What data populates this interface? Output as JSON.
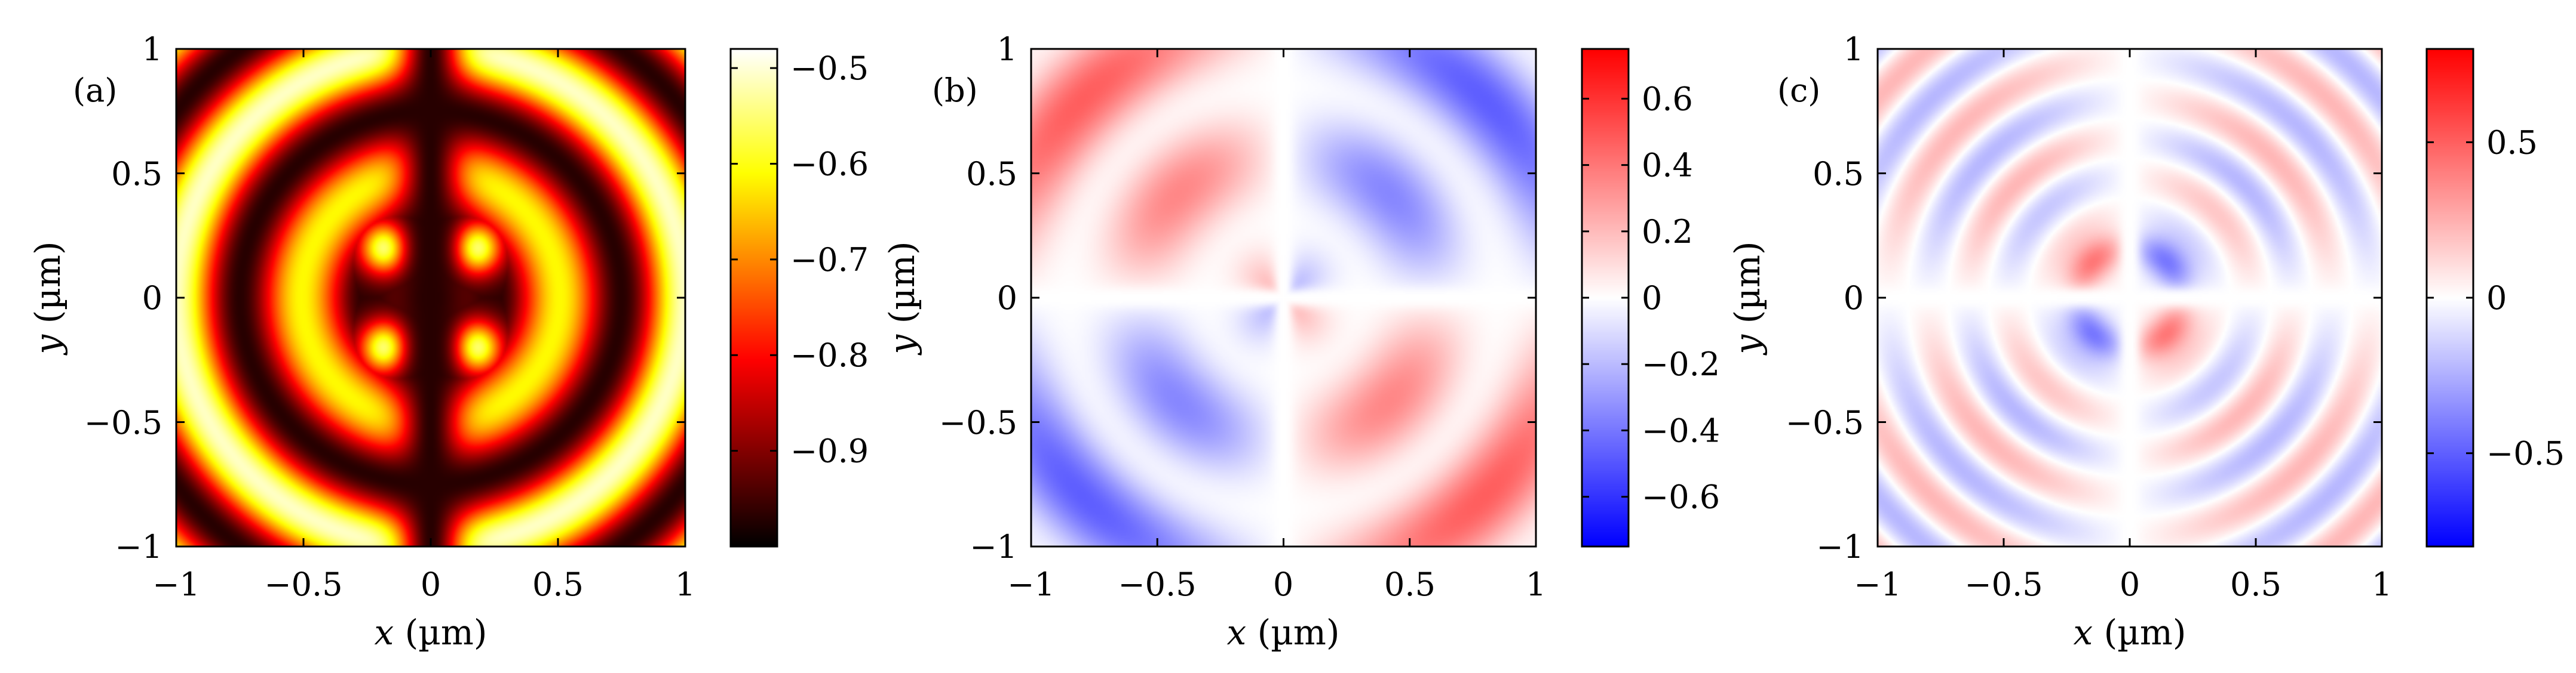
{
  "chart_data": [
    {
      "type": "heatmap",
      "panel_label": "(a)",
      "colormap": "hot",
      "xlabel_var": "x",
      "xlabel_unit": " (µm)",
      "ylabel_var": "y",
      "ylabel_unit": " (µm)",
      "xlim": [
        -1,
        1
      ],
      "ylim": [
        -1,
        1
      ],
      "x_ticks": [
        -1,
        -0.5,
        0,
        0.5,
        1
      ],
      "x_tick_labels": [
        "−1",
        "−0.5",
        "0",
        "0.5",
        "1"
      ],
      "y_ticks": [
        1,
        0.5,
        0,
        -0.5,
        -1
      ],
      "y_tick_labels": [
        "1",
        "0.5",
        "0",
        "−0.5",
        "−1"
      ],
      "colorbar_range": [
        -1.0,
        -0.48
      ],
      "colorbar_ticks": [
        -0.5,
        -0.6,
        -0.7,
        -0.8,
        -0.9
      ],
      "colorbar_tick_labels": [
        "−0.5",
        "−0.6",
        "−0.7",
        "−0.8",
        "−0.9"
      ],
      "field_pattern": "cos-squared rings, dark at x=0, four bright lobes near (±0.17, ±0.2)",
      "colors": {
        "low": "#000000",
        "mid": "#ff0000",
        "high": "#ffffff"
      }
    },
    {
      "type": "heatmap",
      "panel_label": "(b)",
      "colormap": "blue-white-red",
      "xlabel_var": "x",
      "xlabel_unit": " (µm)",
      "ylabel_var": "y",
      "ylabel_unit": " (µm)",
      "xlim": [
        -1,
        1
      ],
      "ylim": [
        -1,
        1
      ],
      "x_ticks": [
        -1,
        -0.5,
        0,
        0.5,
        1
      ],
      "x_tick_labels": [
        "−1",
        "−0.5",
        "0",
        "0.5",
        "1"
      ],
      "y_ticks": [
        1,
        0.5,
        0,
        -0.5,
        -1
      ],
      "y_tick_labels": [
        "1",
        "0.5",
        "0",
        "−0.5",
        "−1"
      ],
      "colorbar_range": [
        -0.75,
        0.75
      ],
      "colorbar_ticks": [
        0.6,
        0.4,
        0.2,
        0,
        -0.2,
        -0.4,
        -0.6
      ],
      "colorbar_tick_labels": [
        "0.6",
        "0.4",
        "0.2",
        "0",
        "−0.2",
        "−0.4",
        "−0.6"
      ],
      "field_pattern": "quadrupole sign pattern with broad rings",
      "colors": {
        "low": "#0000ff",
        "mid": "#ffffff",
        "high": "#ff0000"
      }
    },
    {
      "type": "heatmap",
      "panel_label": "(c)",
      "colormap": "blue-white-red",
      "xlabel_var": "x",
      "xlabel_unit": " (µm)",
      "ylabel_var": "y",
      "ylabel_unit": " (µm)",
      "xlim": [
        -1,
        1
      ],
      "ylim": [
        -1,
        1
      ],
      "x_ticks": [
        -1,
        -0.5,
        0,
        0.5,
        1
      ],
      "x_tick_labels": [
        "−1",
        "−0.5",
        "0",
        "0.5",
        "1"
      ],
      "y_ticks": [
        1,
        0.5,
        0,
        -0.5,
        -1
      ],
      "y_tick_labels": [
        "1",
        "0.5",
        "0",
        "−0.5",
        "−1"
      ],
      "colorbar_range": [
        -0.8,
        0.8
      ],
      "colorbar_ticks": [
        0.5,
        0,
        -0.5
      ],
      "colorbar_tick_labels": [
        "0.5",
        "0",
        "−0.5"
      ],
      "field_pattern": "quadrupole sign pattern with narrow rings and strong central lobes",
      "colors": {
        "low": "#0000ff",
        "mid": "#ffffff",
        "high": "#ff0000"
      }
    }
  ]
}
